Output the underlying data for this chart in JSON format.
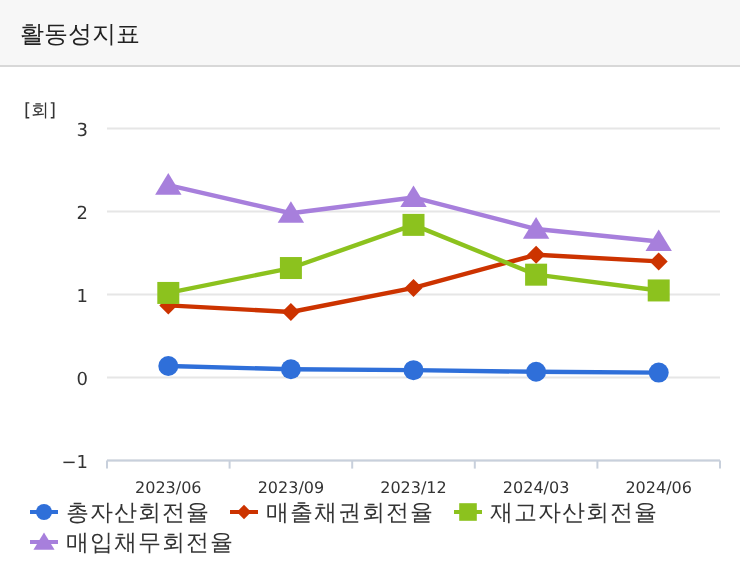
{
  "chart_data": {
    "type": "line",
    "title": "활동성지표",
    "ylabel": "[회]",
    "categories": [
      "2023/06",
      "2023/09",
      "2023/12",
      "2024/03",
      "2024/06"
    ],
    "series": [
      {
        "name": "총자산회전율",
        "color": "#2f6fd9",
        "marker": "circle",
        "values": [
          0.14,
          0.1,
          0.09,
          0.07,
          0.06
        ]
      },
      {
        "name": "매출채권회전율",
        "color": "#cc3300",
        "marker": "diamond",
        "values": [
          0.87,
          0.79,
          1.08,
          1.48,
          1.4
        ]
      },
      {
        "name": "재고자산회전율",
        "color": "#8cc21e",
        "marker": "square",
        "values": [
          1.02,
          1.32,
          1.84,
          1.24,
          1.05
        ]
      },
      {
        "name": "매입채무회전율",
        "color": "#a77fdc",
        "marker": "triangle",
        "values": [
          2.32,
          1.98,
          2.17,
          1.79,
          1.64
        ]
      }
    ],
    "ylim": [
      -1,
      3
    ],
    "yticks": [
      -1,
      0,
      1,
      2,
      3
    ],
    "grid": "y",
    "legend": "bottom"
  }
}
